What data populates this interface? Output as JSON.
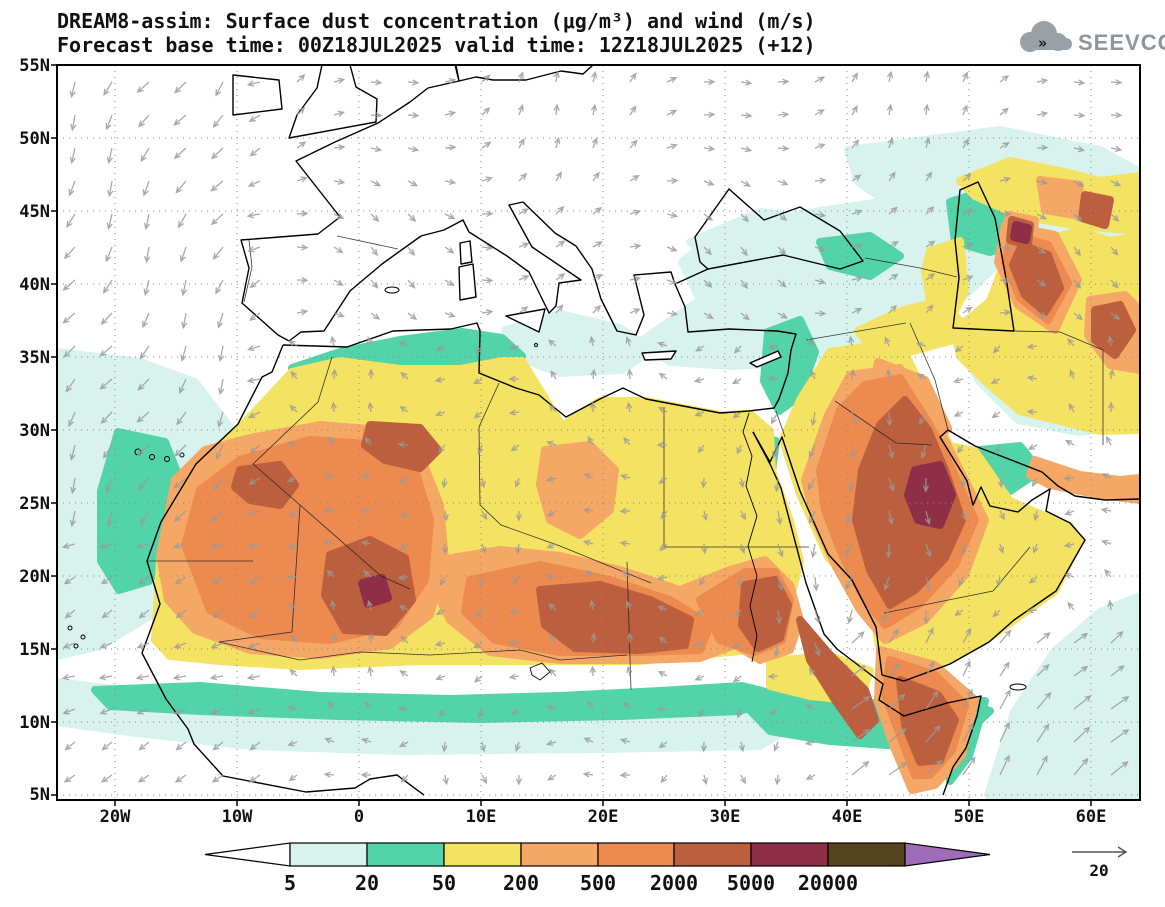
{
  "header": {
    "title_line1": "DREAM8-assim: Surface dust concentration (μg/m³) and wind (m/s)",
    "title_line2": "Forecast base time: 00Z18JUL2025     valid time: 12Z18JUL2025 (+12)",
    "logo_text": "SEEVCCC"
  },
  "chart_data": {
    "type": "heatmap",
    "subtype": "filled-contour geographic map with wind vectors",
    "model": "DREAM8-assim",
    "variable": "Surface dust concentration",
    "units": "μg/m³",
    "wind_units": "m/s",
    "forecast_base_time": "00Z18JUL2025",
    "valid_time": "12Z18JUL2025",
    "lead": "+12",
    "axes": {
      "lat_labels": [
        "55N",
        "50N",
        "45N",
        "40N",
        "35N",
        "30N",
        "25N",
        "20N",
        "15N",
        "10N",
        "5N"
      ],
      "lon_labels": [
        "20W",
        "10W",
        "0",
        "10E",
        "20E",
        "30E",
        "40E",
        "50E",
        "60E"
      ],
      "lat_range": [
        5,
        55
      ],
      "lon_range": [
        -25,
        64
      ],
      "grid": "dotted"
    },
    "colorbar": {
      "levels": [
        5,
        20,
        50,
        200,
        500,
        2000,
        5000,
        20000
      ],
      "labels": [
        "5",
        "20",
        "50",
        "200",
        "500",
        "2000",
        "5000",
        "20000"
      ],
      "colors": [
        "#ffffff",
        "#d8f3ee",
        "#52d3a8",
        "#f4e263",
        "#f5a765",
        "#ec8a50",
        "#bc5f3e",
        "#8e2f47",
        "#55431d",
        "#9e6cb8"
      ],
      "under_color": "#ffffff",
      "over_color": "#9e6cb8",
      "orientation": "horizontal",
      "position": "bottom"
    },
    "wind_reference": {
      "value": "20",
      "units": "m/s"
    },
    "field_summary": "High dust (500-5000+ μg/m³) over the Sahara (Mauritania-Mali-Niger-Chad-Sudan), the Arabian Peninsula, Horn of Africa and east of the Caspian Sea; 50-200 μg/m³ over most of North Africa and Middle East; clean air (<5) over the Atlantic and most of Europe."
  }
}
